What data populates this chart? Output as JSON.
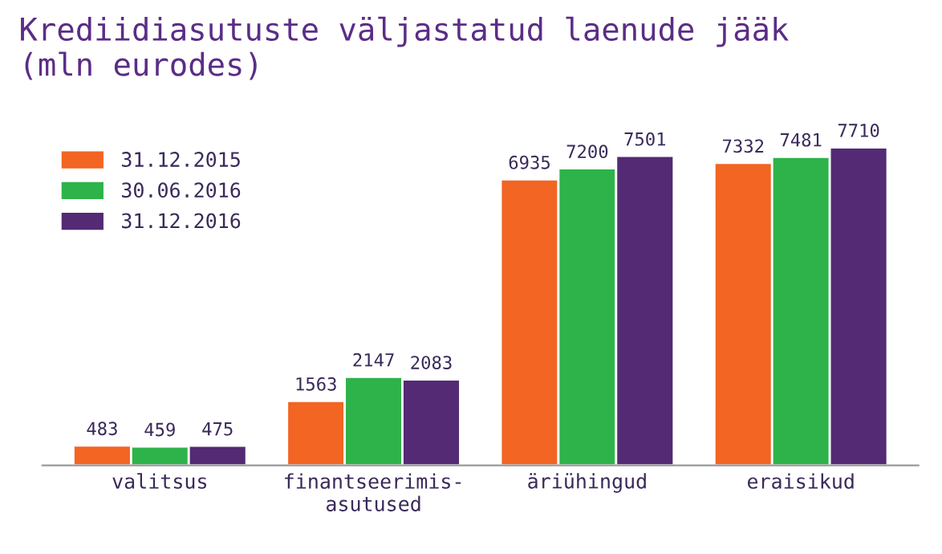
{
  "chart_data": {
    "type": "bar",
    "title": "Krediidiasutuste väljastatud laenude jääk\n(mln eurodes)",
    "categories": [
      "valitsus",
      "finantseerimis-\nasutused",
      "äriühingud",
      "eraisikud"
    ],
    "series": [
      {
        "name": "31.12.2015",
        "color": "#f26522",
        "values": [
          483,
          1563,
          6935,
          7332
        ]
      },
      {
        "name": "30.06.2016",
        "color": "#2db34a",
        "values": [
          459,
          2147,
          7200,
          7481
        ]
      },
      {
        "name": "31.12.2016",
        "color": "#532a73",
        "values": [
          475,
          2083,
          7501,
          7710
        ]
      }
    ],
    "data_labels": true,
    "grid": false,
    "legend": "top left"
  }
}
